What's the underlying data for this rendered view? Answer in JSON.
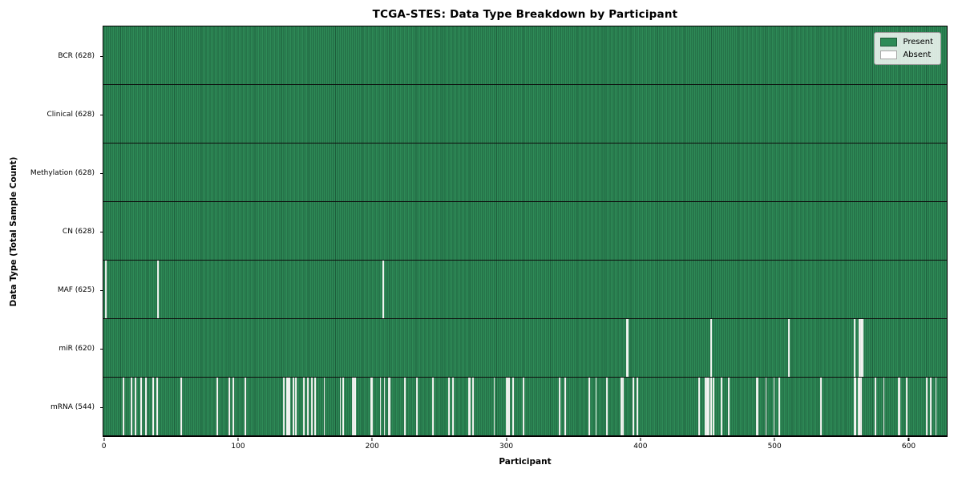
{
  "title": "TCGA-STES: Data Type Breakdown by Participant",
  "xlabel": "Participant",
  "ylabel": "Data Type (Total Sample Count)",
  "legend": {
    "present_label": "Present",
    "absent_label": "Absent",
    "position": "upper right"
  },
  "colors": {
    "present": "#2e8b57",
    "present_dark": "#1e5f3d",
    "absent": "#f5f5f3",
    "spine": "#000000",
    "text": "#000000"
  },
  "chart_data": {
    "type": "heatmap",
    "title": "TCGA-STES: Data Type Breakdown by Participant",
    "xlabel": "Participant",
    "ylabel": "Data Type (Total Sample Count)",
    "legend_entries": [
      "Present",
      "Absent"
    ],
    "legend_position": "upper right",
    "grid": false,
    "n_participants": 628,
    "x_ticks": [
      0,
      100,
      200,
      300,
      400,
      500,
      600
    ],
    "xlim": [
      -1,
      629
    ],
    "rows": [
      {
        "data_type": "BCR",
        "label": "BCR (628)",
        "present_count": 628,
        "absent_count": 0,
        "absent_participants": []
      },
      {
        "data_type": "Clinical",
        "label": "Clinical (628)",
        "present_count": 628,
        "absent_count": 0,
        "absent_participants": []
      },
      {
        "data_type": "Methylation",
        "label": "Methylation (628)",
        "present_count": 628,
        "absent_count": 0,
        "absent_participants": []
      },
      {
        "data_type": "CN",
        "label": "CN (628)",
        "present_count": 628,
        "absent_count": 0,
        "absent_participants": []
      },
      {
        "data_type": "MAF",
        "label": "MAF (625)",
        "present_count": 625,
        "absent_count": 3,
        "absent_participants": [
          1,
          40,
          208
        ]
      },
      {
        "data_type": "miR",
        "label": "miR (620)",
        "present_count": 620,
        "absent_count": 8,
        "absent_participants": [
          390,
          391,
          453,
          511,
          560,
          564,
          565,
          566
        ]
      },
      {
        "data_type": "mRNA",
        "label": "mRNA (544)",
        "present_count": 544,
        "absent_count": 84,
        "absent_participants": [
          14,
          20,
          23,
          27,
          31,
          36,
          39,
          57,
          84,
          93,
          96,
          105,
          134,
          136,
          137,
          138,
          141,
          143,
          149,
          152,
          155,
          157,
          164,
          176,
          178,
          185,
          186,
          187,
          199,
          200,
          206,
          209,
          212,
          213,
          224,
          233,
          245,
          257,
          260,
          272,
          273,
          275,
          291,
          300,
          301,
          302,
          305,
          313,
          340,
          344,
          362,
          367,
          375,
          386,
          387,
          395,
          398,
          444,
          449,
          450,
          451,
          453,
          455,
          461,
          466,
          487,
          488,
          494,
          500,
          504,
          535,
          560,
          561,
          563,
          564,
          565,
          576,
          582,
          593,
          594,
          599,
          614,
          617,
          621
        ]
      }
    ]
  }
}
